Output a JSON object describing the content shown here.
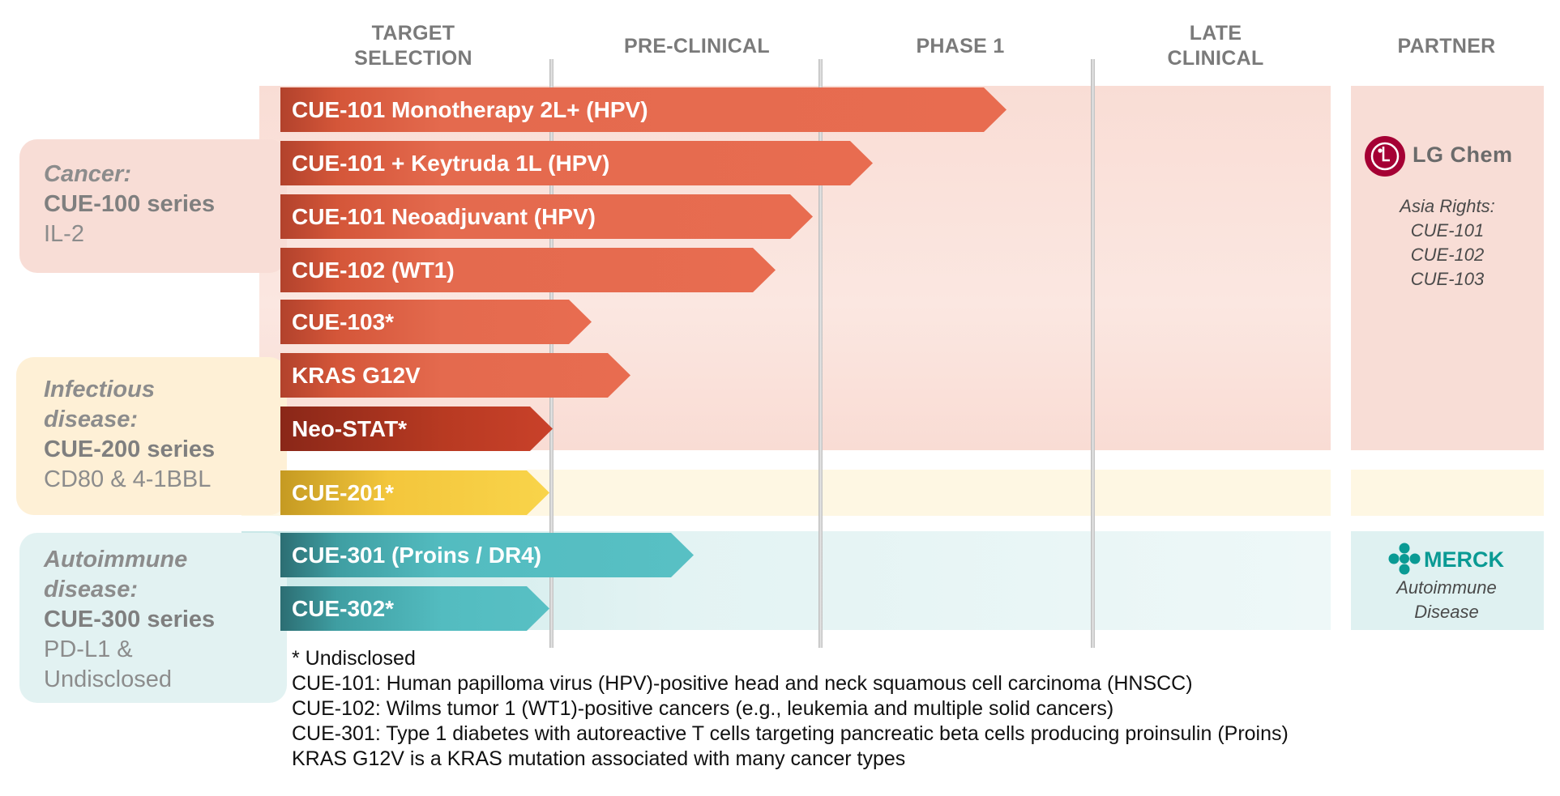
{
  "stages": [
    "TARGET\nSELECTION",
    "PRE-CLINICAL",
    "PHASE 1",
    "LATE\nCLINICAL",
    "PARTNER"
  ],
  "categories": [
    {
      "title": "Cancer:",
      "series": "CUE-100 series",
      "subtitle": "IL-2"
    },
    {
      "title": "Infectious disease:",
      "series": "CUE-200 series",
      "subtitle": "CD80 & 4-1BBL"
    },
    {
      "title": "Autoimmune disease:",
      "series": "CUE-300 series",
      "subtitle": "PD-L1 & Undisclosed"
    }
  ],
  "programs": [
    {
      "label": "CUE-101 Monotherapy 2L+ (HPV)",
      "color": "#e86c50"
    },
    {
      "label": "CUE-101 + Keytruda 1L (HPV)",
      "color": "#e86c50"
    },
    {
      "label": "CUE-101 Neoadjuvant (HPV)",
      "color": "#e86c50"
    },
    {
      "label": "CUE-102 (WT1)",
      "color": "#e86c50"
    },
    {
      "label": "CUE-103*",
      "color": "#e86c50"
    },
    {
      "label": "KRAS G12V",
      "color": "#e86c50"
    },
    {
      "label": "Neo-STAT*",
      "color": "#b83a22"
    },
    {
      "label": "CUE-201*",
      "color": "#f9d44a"
    },
    {
      "label": "CUE-301 (Proins / DR4)",
      "color": "#58c0c4"
    },
    {
      "label": "CUE-302*",
      "color": "#58c0c4"
    }
  ],
  "partners": {
    "lg": {
      "logo": "LG Chem",
      "note_title": "Asia Rights:",
      "programs": [
        "CUE-101",
        "CUE-102",
        "CUE-103"
      ]
    },
    "merck": {
      "logo": "MERCK",
      "note": "Autoimmune Disease"
    }
  },
  "footnotes": [
    "* Undisclosed",
    "CUE-101: Human papilloma virus (HPV)-positive head and neck squamous cell carcinoma (HNSCC)",
    "CUE-102: Wilms tumor 1 (WT1)-positive cancers (e.g., leukemia and multiple solid cancers)",
    "CUE-301: Type 1 diabetes with autoreactive T cells targeting pancreatic beta cells producing proinsulin (Proins)",
    "KRAS G12V is a KRAS mutation associated with many cancer types"
  ],
  "colors": {
    "cancer_band": "#f9dcd4",
    "infectious_band": "#fdf4de",
    "autoimmune_band": "#e2f2f2",
    "lg_red": "#a50034",
    "merck_teal": "#0a9a94"
  }
}
